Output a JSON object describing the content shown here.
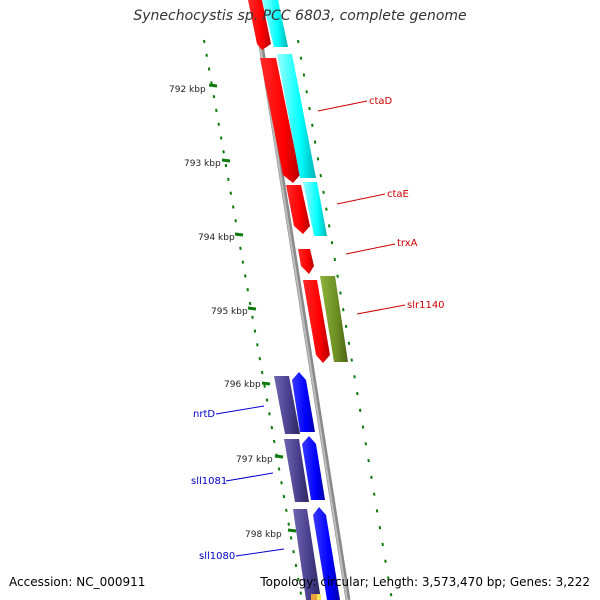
{
  "header": {
    "title": "Synechocystis sp. PCC 6803, complete genome"
  },
  "footer": {
    "accession": "Accession: NC_000911",
    "topology": "Topology: circular; Length: 3,573,470 bp; Genes: 3,222"
  },
  "ruler": {
    "ticks": [
      "792 kbp",
      "793 kbp",
      "794 kbp",
      "795 kbp",
      "796 kbp",
      "797 kbp",
      "798 kbp"
    ]
  },
  "genes": [
    {
      "name": "ctaD",
      "color": "#cc0000"
    },
    {
      "name": "ctaE",
      "color": "#cc0000"
    },
    {
      "name": "trxA",
      "color": "#cc0000"
    },
    {
      "name": "slr1140",
      "color": "#cc0000"
    },
    {
      "name": "nrtD",
      "color": "#0000cc"
    },
    {
      "name": "sll1081",
      "color": "#0000cc"
    },
    {
      "name": "sll1080",
      "color": "#0000cc"
    }
  ],
  "colors": {
    "forward_cds": "#ff0000",
    "forward_orf": "#00ffff",
    "forward_other": "#6b8e23",
    "reverse_cds": "#0000ff",
    "reverse_orf": "#483d8b",
    "backbone": "#808080",
    "ticks": "#006400"
  }
}
